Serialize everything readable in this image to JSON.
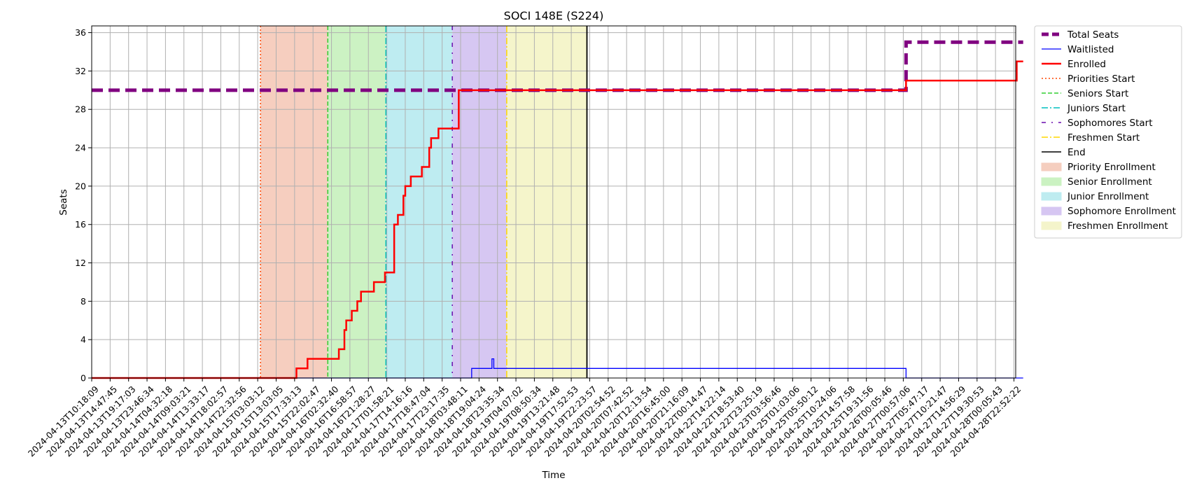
{
  "chart_data": {
    "type": "line",
    "title": "SOCI 148E (S224)",
    "xlabel": "Time",
    "ylabel": "Seats",
    "ylim": [
      0,
      36.7
    ],
    "yticks": [
      0,
      4,
      8,
      12,
      16,
      20,
      24,
      28,
      32,
      36
    ],
    "grid": true,
    "legend_placement": "outside-right",
    "x_ticks": [
      "2024-04-13T10:18:09",
      "2024-04-13T14:47:45",
      "2024-04-13T19:17:03",
      "2024-04-13T23:46:34",
      "2024-04-14T04:32:18",
      "2024-04-14T09:03:21",
      "2024-04-14T13:33:17",
      "2024-04-14T18:02:57",
      "2024-04-14T22:32:56",
      "2024-04-15T03:03:12",
      "2024-04-15T13:03:05",
      "2024-04-15T17:33:13",
      "2024-04-15T22:02:47",
      "2024-04-16T02:32:40",
      "2024-04-16T16:58:57",
      "2024-04-16T21:28:27",
      "2024-04-17T01:58:21",
      "2024-04-17T14:16:16",
      "2024-04-17T18:47:04",
      "2024-04-17T23:17:35",
      "2024-04-18T03:48:11",
      "2024-04-18T19:04:24",
      "2024-04-18T23:35:34",
      "2024-04-19T04:07:02",
      "2024-04-19T08:50:34",
      "2024-04-19T13:21:48",
      "2024-04-19T17:52:53",
      "2024-04-19T22:23:57",
      "2024-04-20T02:54:52",
      "2024-04-20T07:42:52",
      "2024-04-20T12:13:54",
      "2024-04-20T16:45:00",
      "2024-04-20T21:16:09",
      "2024-04-22T00:14:47",
      "2024-04-22T14:22:14",
      "2024-04-22T18:53:40",
      "2024-04-22T23:25:19",
      "2024-04-23T03:56:46",
      "2024-04-25T01:03:06",
      "2024-04-25T05:50:12",
      "2024-04-25T10:24:06",
      "2024-04-25T14:57:58",
      "2024-04-25T19:31:56",
      "2024-04-26T00:05:46",
      "2024-04-27T00:57:06",
      "2024-04-27T05:47:17",
      "2024-04-27T10:21:47",
      "2024-04-27T14:56:29",
      "2024-04-27T19:30:53",
      "2024-04-28T00:05:43",
      "2024-04-28T22:52:22"
    ],
    "series": [
      {
        "name": "Total Seats",
        "color": "#800080",
        "style": "dashed-thick",
        "points": [
          [
            0,
            30
          ],
          [
            44.15,
            30
          ],
          [
            44.15,
            35
          ],
          [
            50.5,
            35
          ]
        ]
      },
      {
        "name": "Waitlisted",
        "color": "#0000ff",
        "style": "solid-thin",
        "points": [
          [
            0,
            0
          ],
          [
            20.6,
            0
          ],
          [
            20.6,
            1
          ],
          [
            21.7,
            1
          ],
          [
            21.7,
            2
          ],
          [
            21.8,
            2
          ],
          [
            21.8,
            1
          ],
          [
            44.15,
            1
          ],
          [
            44.15,
            0
          ],
          [
            50.5,
            0
          ]
        ]
      },
      {
        "name": "Enrolled",
        "color": "#ff0000",
        "style": "solid",
        "points": [
          [
            0,
            0
          ],
          [
            11.1,
            0
          ],
          [
            11.1,
            1
          ],
          [
            11.7,
            1
          ],
          [
            11.7,
            2
          ],
          [
            13.4,
            2
          ],
          [
            13.4,
            3
          ],
          [
            13.7,
            3
          ],
          [
            13.7,
            5
          ],
          [
            13.8,
            5
          ],
          [
            13.8,
            6
          ],
          [
            14.1,
            6
          ],
          [
            14.1,
            7
          ],
          [
            14.4,
            7
          ],
          [
            14.4,
            8
          ],
          [
            14.6,
            8
          ],
          [
            14.6,
            9
          ],
          [
            15.3,
            9
          ],
          [
            15.3,
            10
          ],
          [
            15.9,
            10
          ],
          [
            15.9,
            11
          ],
          [
            16.4,
            11
          ],
          [
            16.4,
            16
          ],
          [
            16.6,
            16
          ],
          [
            16.6,
            17
          ],
          [
            16.9,
            17
          ],
          [
            16.9,
            19
          ],
          [
            17.0,
            19
          ],
          [
            17.0,
            20
          ],
          [
            17.3,
            20
          ],
          [
            17.3,
            21
          ],
          [
            17.9,
            21
          ],
          [
            17.9,
            22
          ],
          [
            18.3,
            22
          ],
          [
            18.3,
            24
          ],
          [
            18.4,
            24
          ],
          [
            18.4,
            25
          ],
          [
            18.8,
            25
          ],
          [
            18.8,
            26
          ],
          [
            19.9,
            26
          ],
          [
            19.9,
            30
          ],
          [
            44.15,
            30
          ],
          [
            44.15,
            31
          ],
          [
            50.15,
            31
          ],
          [
            50.15,
            33
          ],
          [
            50.5,
            33
          ]
        ]
      }
    ],
    "markers": [
      {
        "name": "Priorities Start",
        "x": 9.15,
        "color": "#ff4500",
        "style": "dotted"
      },
      {
        "name": "Seniors Start",
        "x": 12.8,
        "color": "#32cd32",
        "style": "dashed"
      },
      {
        "name": "Juniors Start",
        "x": 15.95,
        "color": "#00bfbf",
        "style": "dashdot"
      },
      {
        "name": "Sophomores Start",
        "x": 19.55,
        "color": "#6a0dad",
        "style": "loose-dashdot"
      },
      {
        "name": "Freshmen Start",
        "x": 22.5,
        "color": "#ffd700",
        "style": "dashdot"
      },
      {
        "name": "End",
        "x": 26.85,
        "color": "#000000",
        "style": "solid"
      }
    ],
    "periods": [
      {
        "name": "Priority Enrollment",
        "start": 9.15,
        "end": 12.8,
        "color": "#f4c6b4"
      },
      {
        "name": "Senior Enrollment",
        "start": 12.8,
        "end": 15.95,
        "color": "#c3f0b8"
      },
      {
        "name": "Junior Enrollment",
        "start": 15.95,
        "end": 19.55,
        "color": "#b3e9ee"
      },
      {
        "name": "Sophomore Enrollment",
        "start": 19.55,
        "end": 22.5,
        "color": "#cfbdf0"
      },
      {
        "name": "Freshmen Enrollment",
        "start": 22.5,
        "end": 26.85,
        "color": "#f3f3c2"
      }
    ]
  }
}
